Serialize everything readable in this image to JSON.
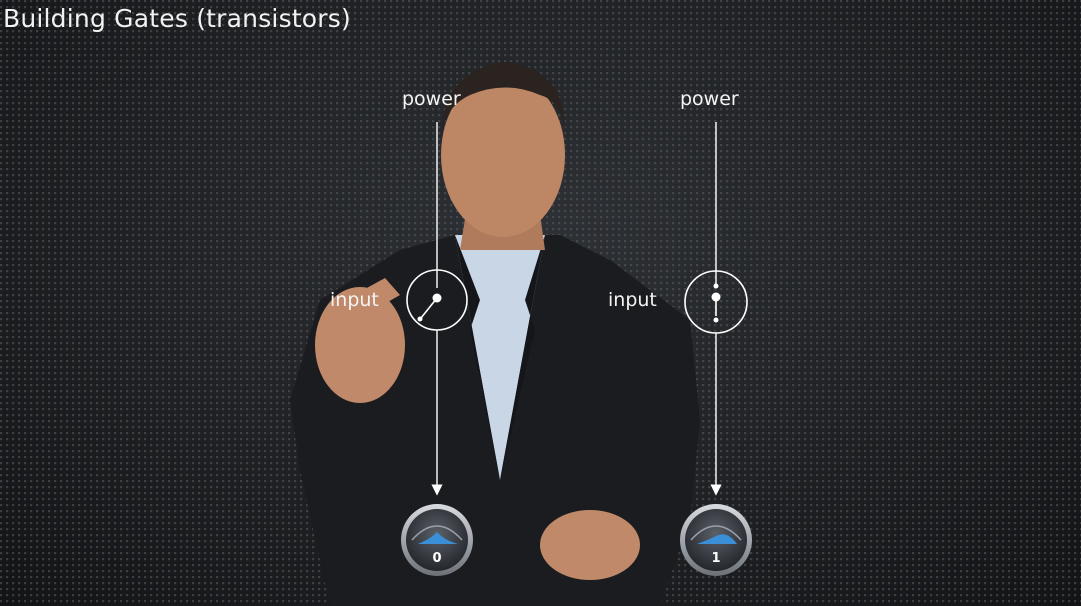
{
  "slide": {
    "title": "Building Gates (transistors)"
  },
  "circuits": [
    {
      "power_label": "power",
      "input_label": "input",
      "switch_state": "open",
      "output_value": "0"
    },
    {
      "power_label": "power",
      "input_label": "input",
      "switch_state": "closed",
      "output_value": "1"
    }
  ],
  "colors": {
    "background": "#1c1e21",
    "wire": "#ffffff",
    "meter_accent": "#3a8fd6"
  }
}
